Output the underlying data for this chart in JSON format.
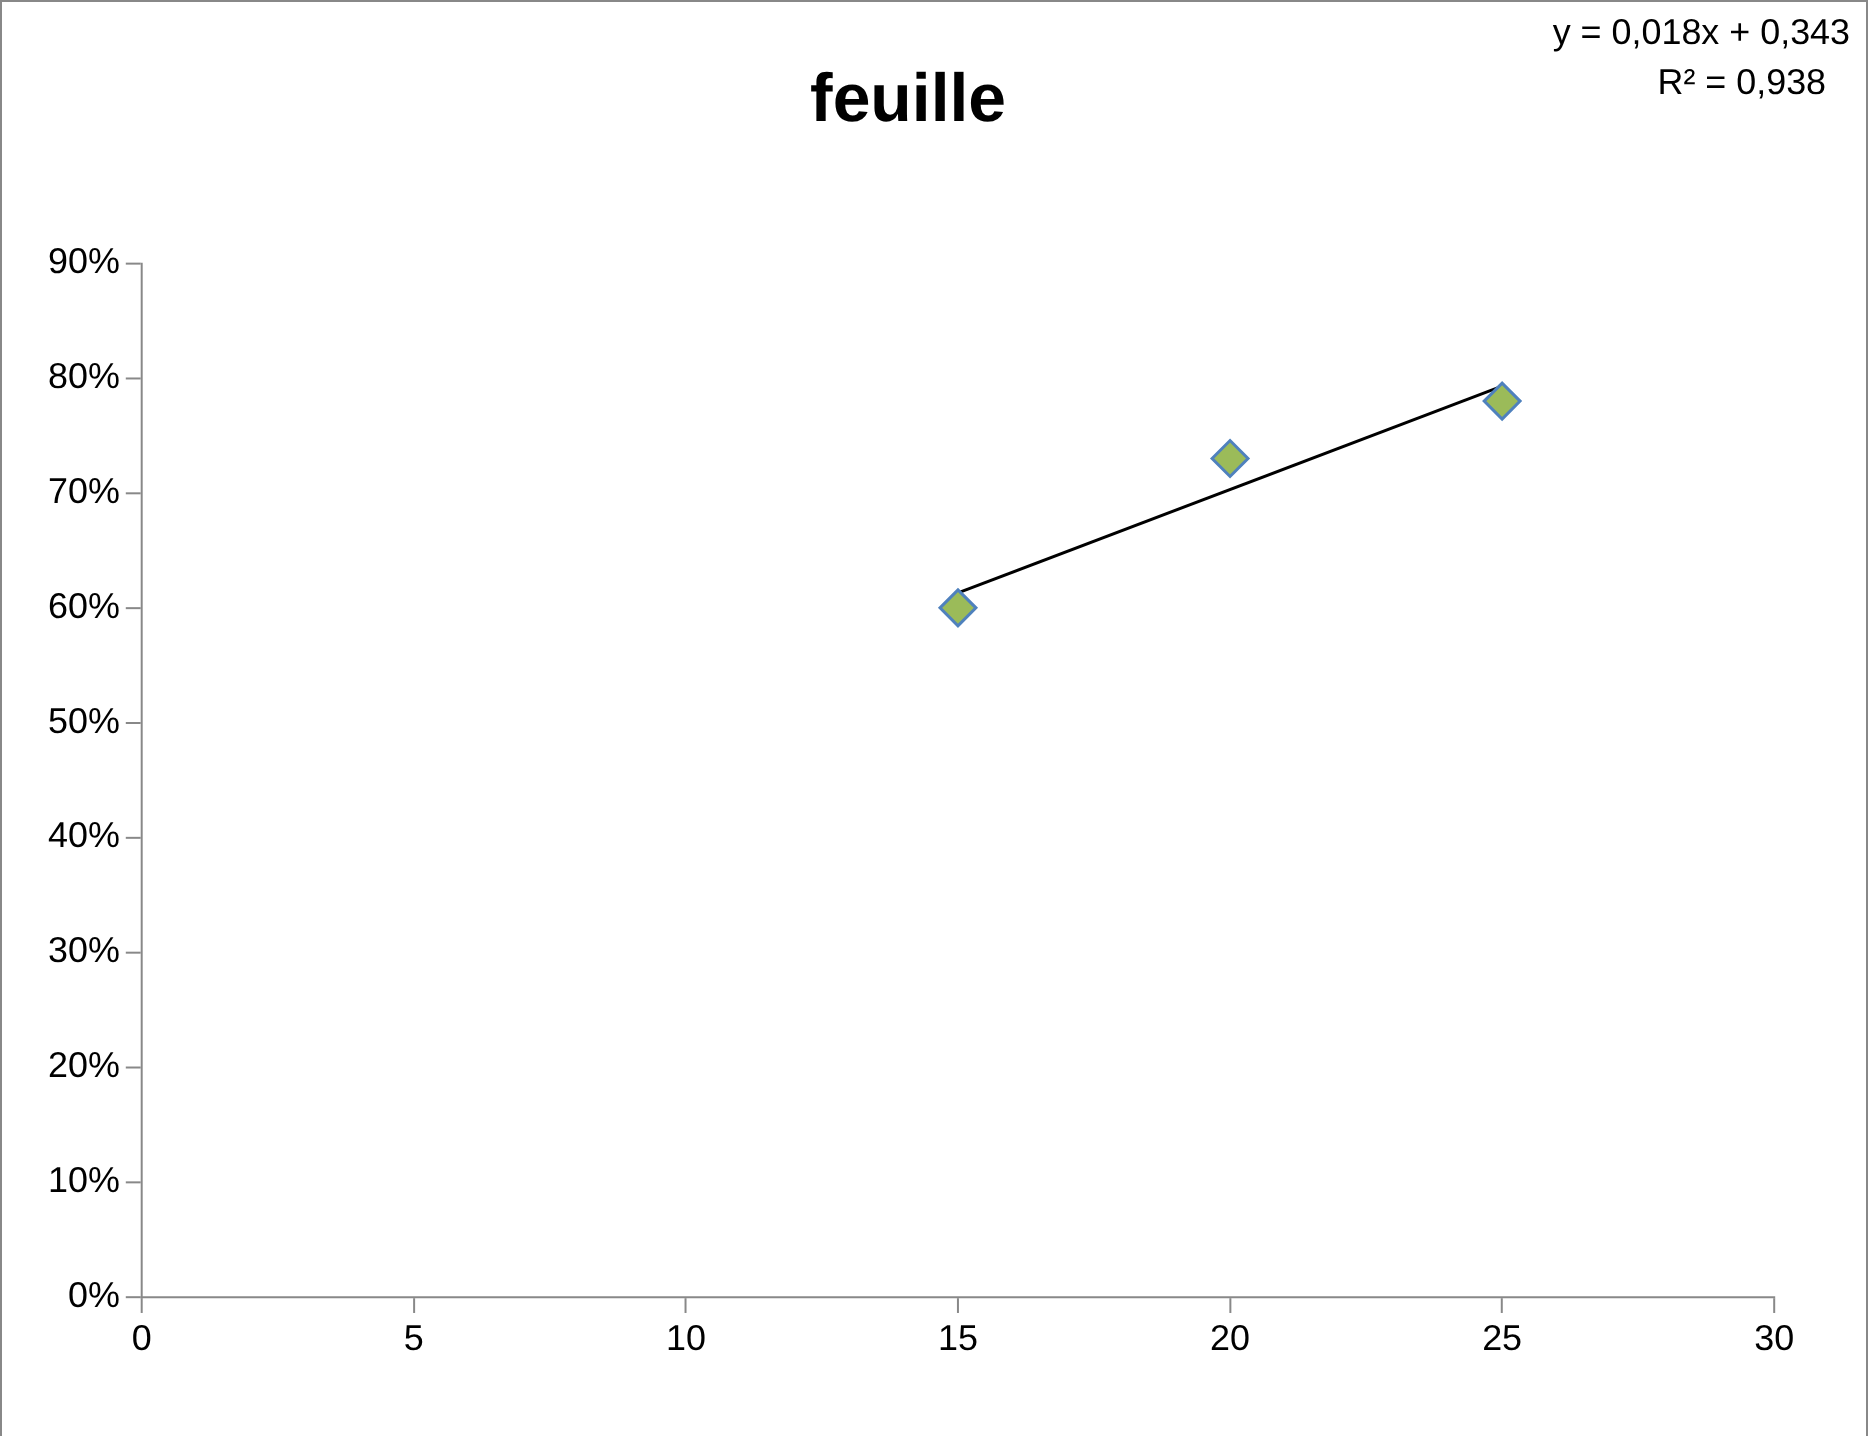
{
  "chart_data": {
    "type": "scatter",
    "title": "feuille",
    "annotations": [
      "y = 0,018x + 0,343",
      "R² = 0,938"
    ],
    "series": [
      {
        "type": "scatter",
        "x": [
          15,
          20,
          25
        ],
        "values": [
          0.6,
          0.73,
          0.78
        ],
        "color": "#9bbb59",
        "marker": "diamond"
      },
      {
        "type": "line",
        "x": [
          15,
          25
        ],
        "values": [
          0.613,
          0.793
        ],
        "color": "#000000",
        "marker": "none"
      }
    ],
    "xlim": [
      0,
      30
    ],
    "xticks": [
      0,
      5,
      10,
      15,
      20,
      25,
      30
    ],
    "ylim": [
      0,
      0.9
    ],
    "yticks": [
      {
        "value": 0,
        "label": "0%"
      },
      {
        "value": 0.1,
        "label": "10%"
      },
      {
        "value": 0.2,
        "label": "20%"
      },
      {
        "value": 0.3,
        "label": "30%"
      },
      {
        "value": 0.4,
        "label": "40%"
      },
      {
        "value": 0.5,
        "label": "50%"
      },
      {
        "value": 0.6,
        "label": "60%"
      },
      {
        "value": 0.7,
        "label": "70%"
      },
      {
        "value": 0.8,
        "label": "80%"
      },
      {
        "value": 0.9,
        "label": "90%"
      }
    ],
    "grid": false,
    "legend": false
  }
}
